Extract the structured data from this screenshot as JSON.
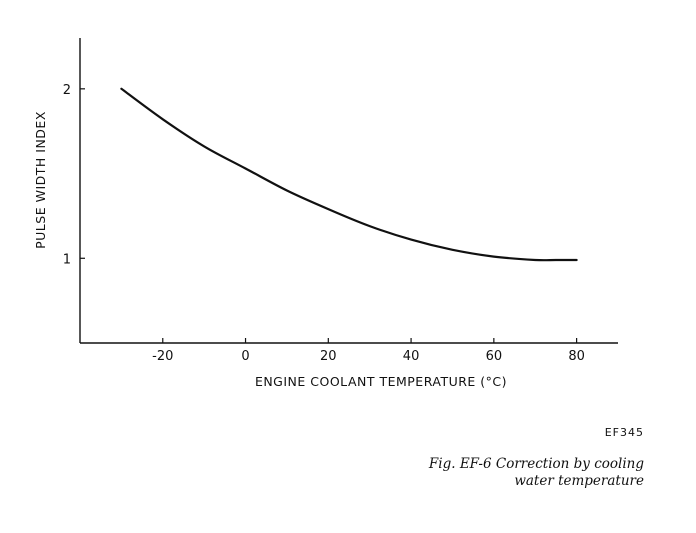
{
  "chart_data": {
    "type": "line",
    "title": "",
    "xlabel": "ENGINE COOLANT TEMPERATURE (°C)",
    "ylabel": "PULSE WIDTH INDEX",
    "xlim": [
      -40,
      90
    ],
    "ylim": [
      0.5,
      2.3
    ],
    "x_ticks": [
      -20,
      0,
      20,
      40,
      60,
      80
    ],
    "x_tick_labels": [
      "-20",
      "0",
      "20",
      "40",
      "60",
      "80"
    ],
    "y_ticks": [
      1,
      2
    ],
    "y_tick_labels": [
      "1",
      "2"
    ],
    "grid": false,
    "legend": "none",
    "series": [
      {
        "x": [
          -30,
          -20,
          -10,
          0,
          10,
          20,
          30,
          40,
          50,
          60,
          70,
          75,
          80
        ],
        "y": [
          2.0,
          1.82,
          1.66,
          1.53,
          1.4,
          1.29,
          1.19,
          1.11,
          1.05,
          1.01,
          0.99,
          0.99,
          0.99
        ]
      }
    ]
  },
  "figure": {
    "code": "EF345",
    "caption_line1": "Fig. EF-6  Correction by cooling",
    "caption_line2": "water temperature"
  }
}
